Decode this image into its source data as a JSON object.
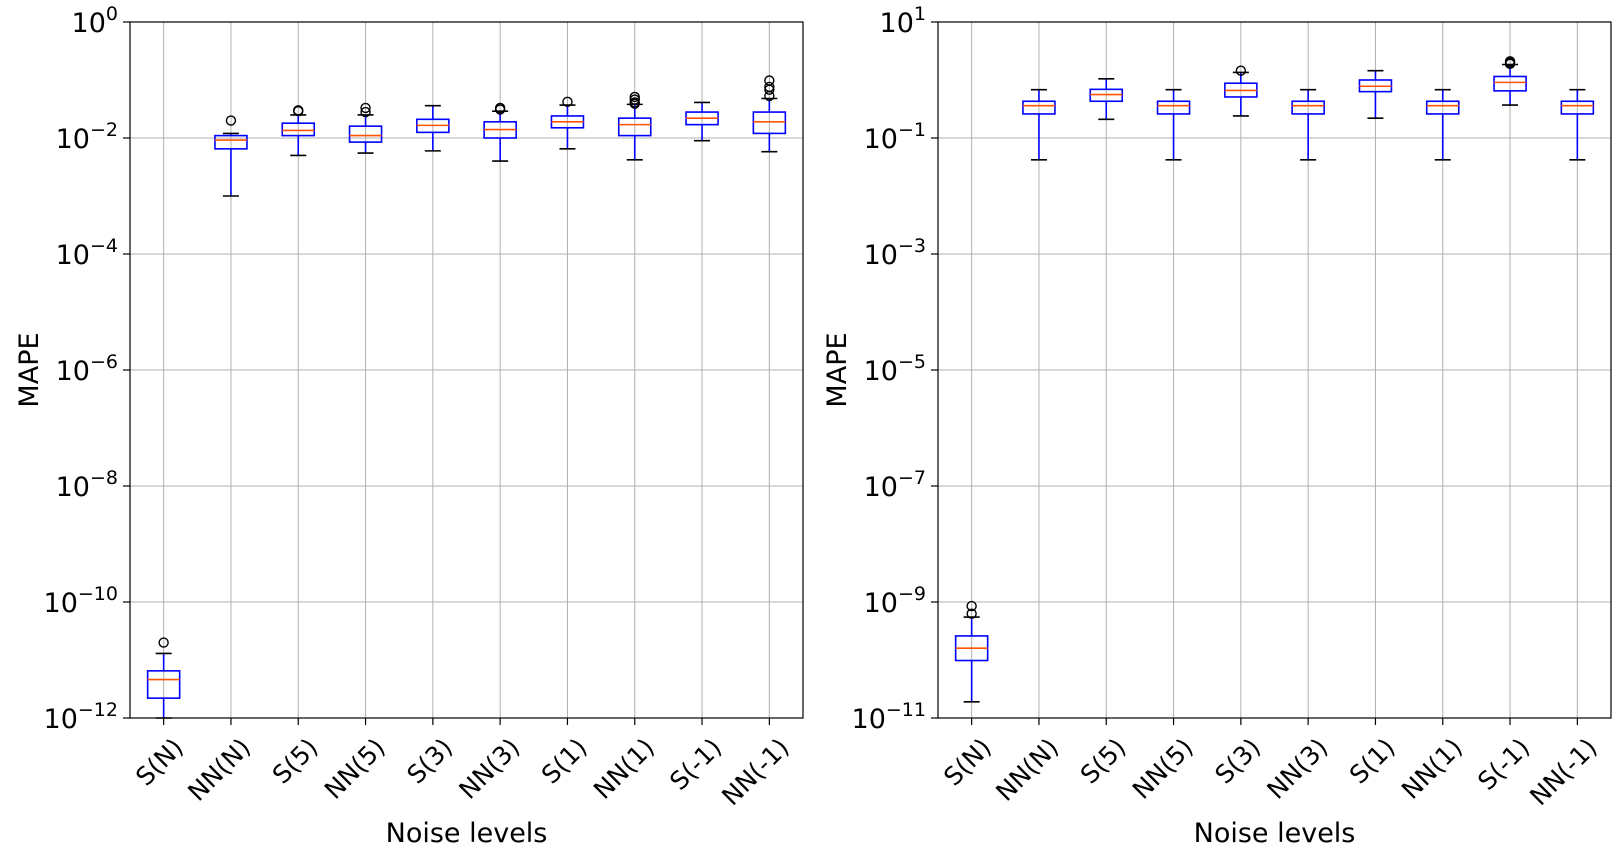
{
  "figure": {
    "colors": {
      "box": "#0000ff",
      "median": "#ff5500",
      "grid": "#b0b0b0",
      "axis": "#000000",
      "flier": "#000000"
    }
  },
  "chart_data": [
    {
      "type": "box",
      "title": "",
      "xlabel": "Noise levels",
      "ylabel": "MAPE",
      "yscale": "log",
      "ylim": [
        1e-12,
        1
      ],
      "grid": true,
      "yticks": [
        {
          "base": "10",
          "exp": "0",
          "value": 1
        },
        {
          "base": "10",
          "exp": "−2",
          "value": 0.01
        },
        {
          "base": "10",
          "exp": "−4",
          "value": 0.0001
        },
        {
          "base": "10",
          "exp": "−6",
          "value": 1e-06
        },
        {
          "base": "10",
          "exp": "−8",
          "value": 1e-08
        },
        {
          "base": "10",
          "exp": "−10",
          "value": 1e-10
        },
        {
          "base": "10",
          "exp": "−12",
          "value": 1e-12
        }
      ],
      "categories": [
        "S(N)",
        "NN(N)",
        "S(5)",
        "NN(5)",
        "S(3)",
        "NN(3)",
        "S(1)",
        "NN(1)",
        "S(-1)",
        "NN(-1)"
      ],
      "boxes": [
        {
          "whislo": 1e-12,
          "q1": 2.2e-12,
          "med": 4.6e-12,
          "q3": 6.5e-12,
          "whishi": 1.3e-11,
          "fliers": [
            2e-11
          ]
        },
        {
          "whislo": 0.001,
          "q1": 0.0065,
          "med": 0.0092,
          "q3": 0.011,
          "whishi": 0.012,
          "fliers": [
            0.02
          ]
        },
        {
          "whislo": 0.005,
          "q1": 0.011,
          "med": 0.0135,
          "q3": 0.018,
          "whishi": 0.025,
          "fliers": [
            0.029,
            0.03
          ]
        },
        {
          "whislo": 0.0055,
          "q1": 0.0085,
          "med": 0.011,
          "q3": 0.016,
          "whishi": 0.025,
          "fliers": [
            0.028,
            0.033
          ]
        },
        {
          "whislo": 0.006,
          "q1": 0.0125,
          "med": 0.0165,
          "q3": 0.021,
          "whishi": 0.036,
          "fliers": []
        },
        {
          "whislo": 0.004,
          "q1": 0.01,
          "med": 0.014,
          "q3": 0.019,
          "whishi": 0.029,
          "fliers": [
            0.031,
            0.033
          ]
        },
        {
          "whislo": 0.0065,
          "q1": 0.015,
          "med": 0.019,
          "q3": 0.024,
          "whishi": 0.037,
          "fliers": [
            0.042
          ]
        },
        {
          "whislo": 0.0042,
          "q1": 0.011,
          "med": 0.017,
          "q3": 0.022,
          "whishi": 0.038,
          "fliers": [
            0.039,
            0.041,
            0.046,
            0.051
          ]
        },
        {
          "whislo": 0.009,
          "q1": 0.017,
          "med": 0.022,
          "q3": 0.028,
          "whishi": 0.041,
          "fliers": []
        },
        {
          "whislo": 0.0058,
          "q1": 0.012,
          "med": 0.019,
          "q3": 0.028,
          "whishi": 0.048,
          "fliers": [
            0.053,
            0.068,
            0.076,
            0.098
          ]
        }
      ]
    },
    {
      "type": "box",
      "title": "",
      "xlabel": "Noise levels",
      "ylabel": "MAPE",
      "yscale": "log",
      "ylim": [
        1e-11,
        10
      ],
      "grid": true,
      "yticks": [
        {
          "base": "10",
          "exp": "1",
          "value": 10
        },
        {
          "base": "10",
          "exp": "−1",
          "value": 0.1
        },
        {
          "base": "10",
          "exp": "−3",
          "value": 0.001
        },
        {
          "base": "10",
          "exp": "−5",
          "value": 1e-05
        },
        {
          "base": "10",
          "exp": "−7",
          "value": 1e-07
        },
        {
          "base": "10",
          "exp": "−9",
          "value": 1e-09
        },
        {
          "base": "10",
          "exp": "−11",
          "value": 1e-11
        }
      ],
      "categories": [
        "S(N)",
        "NN(N)",
        "S(5)",
        "NN(5)",
        "S(3)",
        "NN(3)",
        "S(1)",
        "NN(1)",
        "S(-1)",
        "NN(-1)"
      ],
      "boxes": [
        {
          "whislo": 1.9e-11,
          "q1": 9.8e-11,
          "med": 1.6e-10,
          "q3": 2.6e-10,
          "whishi": 5.5e-10,
          "fliers": [
            6.3e-10,
            8.5e-10
          ]
        },
        {
          "whislo": 0.042,
          "q1": 0.26,
          "med": 0.36,
          "q3": 0.43,
          "whishi": 0.68,
          "fliers": []
        },
        {
          "whislo": 0.21,
          "q1": 0.43,
          "med": 0.56,
          "q3": 0.69,
          "whishi": 1.05,
          "fliers": []
        },
        {
          "whislo": 0.042,
          "q1": 0.26,
          "med": 0.36,
          "q3": 0.43,
          "whishi": 0.68,
          "fliers": []
        },
        {
          "whislo": 0.24,
          "q1": 0.51,
          "med": 0.66,
          "q3": 0.88,
          "whishi": 1.35,
          "fliers": [
            1.45
          ]
        },
        {
          "whislo": 0.042,
          "q1": 0.26,
          "med": 0.36,
          "q3": 0.43,
          "whishi": 0.68,
          "fliers": []
        },
        {
          "whislo": 0.22,
          "q1": 0.63,
          "med": 0.78,
          "q3": 1.0,
          "whishi": 1.45,
          "fliers": []
        },
        {
          "whislo": 0.042,
          "q1": 0.26,
          "med": 0.36,
          "q3": 0.43,
          "whishi": 0.68,
          "fliers": []
        },
        {
          "whislo": 0.37,
          "q1": 0.65,
          "med": 0.91,
          "q3": 1.15,
          "whishi": 1.85,
          "fliers": [
            1.9,
            2.0,
            2.1
          ]
        },
        {
          "whislo": 0.042,
          "q1": 0.26,
          "med": 0.36,
          "q3": 0.43,
          "whishi": 0.68,
          "fliers": []
        }
      ]
    }
  ]
}
